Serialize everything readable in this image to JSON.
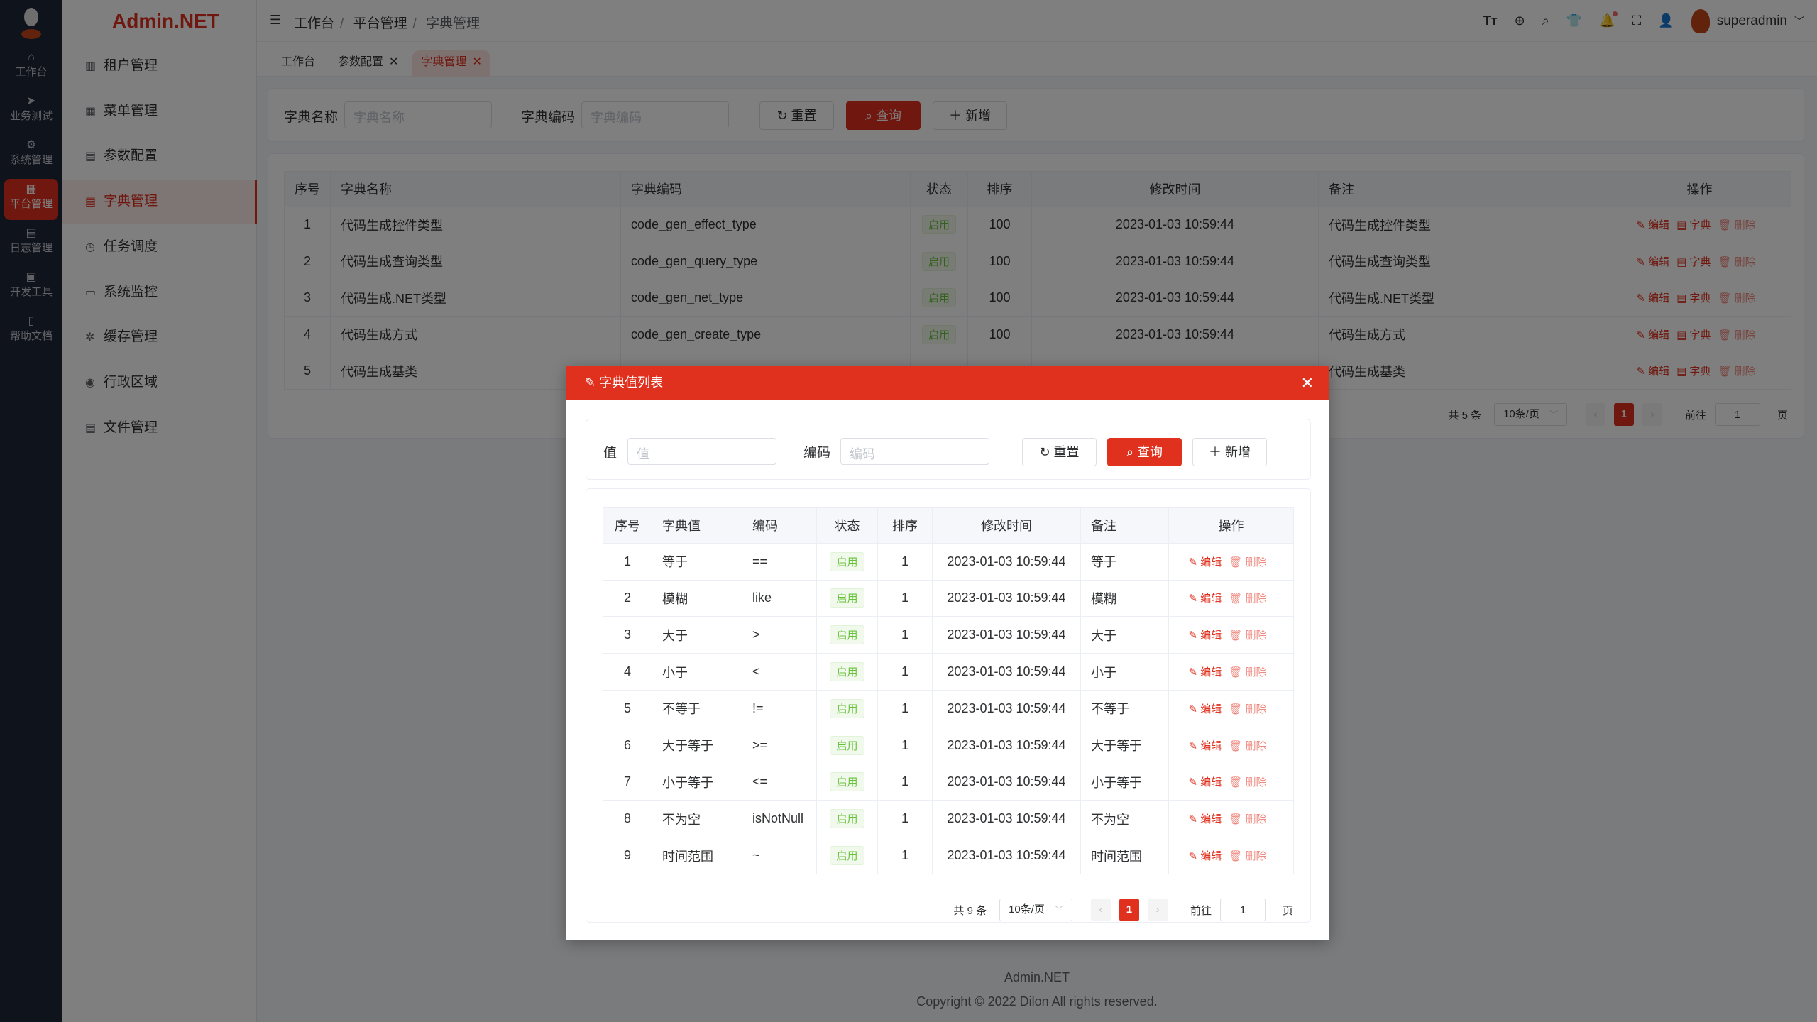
{
  "brand": "Admin.NET",
  "rail": [
    {
      "label": "工作台",
      "icon": "home-icon"
    },
    {
      "label": "业务测试",
      "icon": "navigation-icon"
    },
    {
      "label": "系统管理",
      "icon": "gear-icon"
    },
    {
      "label": "平台管理",
      "icon": "grid-icon",
      "active": true
    },
    {
      "label": "日志管理",
      "icon": "document-icon"
    },
    {
      "label": "开发工具",
      "icon": "chip-icon"
    },
    {
      "label": "帮助文档",
      "icon": "notebook-icon"
    }
  ],
  "menu": [
    {
      "label": "租户管理",
      "icon": "building-icon"
    },
    {
      "label": "菜单管理",
      "icon": "grid-icon"
    },
    {
      "label": "参数配置",
      "icon": "document-icon"
    },
    {
      "label": "字典管理",
      "icon": "book-icon",
      "active": true
    },
    {
      "label": "任务调度",
      "icon": "alarm-clock-icon"
    },
    {
      "label": "系统监控",
      "icon": "monitor-icon"
    },
    {
      "label": "缓存管理",
      "icon": "loading-icon"
    },
    {
      "label": "行政区域",
      "icon": "location-icon"
    },
    {
      "label": "文件管理",
      "icon": "file-icon"
    }
  ],
  "breadcrumb": [
    "工作台",
    "平台管理",
    "字典管理"
  ],
  "user": {
    "name": "superadmin"
  },
  "tabs": [
    {
      "label": "工作台"
    },
    {
      "label": "参数配置",
      "closable": true
    },
    {
      "label": "字典管理",
      "closable": true,
      "active": true
    }
  ],
  "search": {
    "name_label": "字典名称",
    "name_placeholder": "字典名称",
    "code_label": "字典编码",
    "code_placeholder": "字典编码",
    "reset": "重置",
    "query": "查询",
    "add": "新增"
  },
  "table": {
    "headers": [
      "序号",
      "字典名称",
      "字典编码",
      "状态",
      "排序",
      "修改时间",
      "备注",
      "操作"
    ],
    "rows": [
      [
        "1",
        "代码生成控件类型",
        "code_gen_effect_type",
        "启用",
        "100",
        "2023-01-03 10:59:44",
        "代码生成控件类型"
      ],
      [
        "2",
        "代码生成查询类型",
        "code_gen_query_type",
        "启用",
        "100",
        "2023-01-03 10:59:44",
        "代码生成查询类型"
      ],
      [
        "3",
        "代码生成.NET类型",
        "code_gen_net_type",
        "启用",
        "100",
        "2023-01-03 10:59:44",
        "代码生成.NET类型"
      ],
      [
        "4",
        "代码生成方式",
        "code_gen_create_type",
        "启用",
        "100",
        "2023-01-03 10:59:44",
        "代码生成方式"
      ],
      [
        "5",
        "代码生成基类",
        "",
        "",
        "",
        "",
        "代码生成基类"
      ]
    ],
    "actions": {
      "edit": "编辑",
      "dict": "字典",
      "delete": "删除"
    },
    "pagination": {
      "total": "共 5 条",
      "page_size": "10条/页",
      "current": "1",
      "goto": "前往",
      "goto_value": "1",
      "page_suffix": "页"
    }
  },
  "dialog": {
    "title": "字典值列表",
    "search": {
      "value_label": "值",
      "value_placeholder": "值",
      "code_label": "编码",
      "code_placeholder": "编码",
      "reset": "重置",
      "query": "查询",
      "add": "新增"
    },
    "headers": [
      "序号",
      "字典值",
      "编码",
      "状态",
      "排序",
      "修改时间",
      "备注",
      "操作"
    ],
    "rows": [
      [
        "1",
        "等于",
        "==",
        "启用",
        "1",
        "2023-01-03 10:59:44",
        "等于"
      ],
      [
        "2",
        "模糊",
        "like",
        "启用",
        "1",
        "2023-01-03 10:59:44",
        "模糊"
      ],
      [
        "3",
        "大于",
        ">",
        "启用",
        "1",
        "2023-01-03 10:59:44",
        "大于"
      ],
      [
        "4",
        "小于",
        "<",
        "启用",
        "1",
        "2023-01-03 10:59:44",
        "小于"
      ],
      [
        "5",
        "不等于",
        "!=",
        "启用",
        "1",
        "2023-01-03 10:59:44",
        "不等于"
      ],
      [
        "6",
        "大于等于",
        ">=",
        "启用",
        "1",
        "2023-01-03 10:59:44",
        "大于等于"
      ],
      [
        "7",
        "小于等于",
        "<=",
        "启用",
        "1",
        "2023-01-03 10:59:44",
        "小于等于"
      ],
      [
        "8",
        "不为空",
        "isNotNull",
        "启用",
        "1",
        "2023-01-03 10:59:44",
        "不为空"
      ],
      [
        "9",
        "时间范围",
        "~",
        "启用",
        "1",
        "2023-01-03 10:59:44",
        "时间范围"
      ]
    ],
    "actions": {
      "edit": "编辑",
      "delete": "删除"
    },
    "pagination": {
      "total": "共 9 条",
      "page_size": "10条/页",
      "current": "1",
      "goto": "前往",
      "goto_value": "1",
      "page_suffix": "页"
    }
  },
  "footer": {
    "name": "Admin.NET",
    "copyright": "Copyright © 2022 Dilon All rights reserved."
  },
  "colors": {
    "primary": "#e0301e",
    "success": "#67c23a",
    "rail": "#1e2636"
  }
}
